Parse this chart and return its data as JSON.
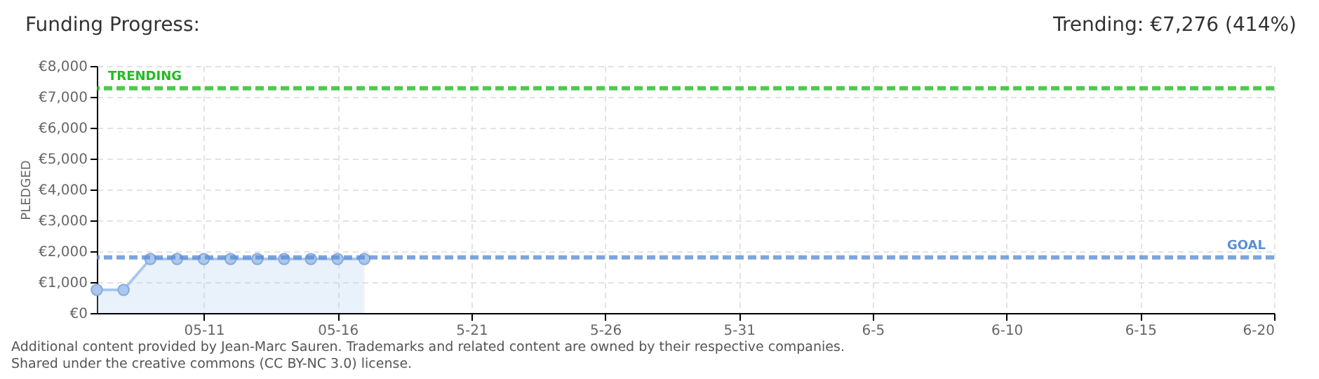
{
  "chart_data": {
    "type": "area",
    "title": "Funding Progress:",
    "subtitle": "Trending: €7,276 (414%)",
    "ylabel": "PLEDGED",
    "x": [
      "--05-07",
      "--05-08",
      "--05-09",
      "--05-10",
      "--05-11",
      "--05-12",
      "--05-13",
      "--05-14",
      "--05-15",
      "--05-16",
      "--05-17"
    ],
    "series": [
      {
        "color": "#a9c8ee",
        "values": [
          750,
          750,
          1750,
          1750,
          1750,
          1750,
          1750,
          1750,
          1750,
          1750,
          1750
        ]
      }
    ],
    "xlim": [
      "--05-07",
      "--06-20"
    ],
    "xticks": [
      {
        "value": "--05-11",
        "label": "05-11"
      },
      {
        "value": "--05-16",
        "label": "05-16"
      },
      {
        "value": "--05-21",
        "label": "5-21"
      },
      {
        "value": "--05-26",
        "label": "5-26"
      },
      {
        "value": "--05-31",
        "label": "5-31"
      },
      {
        "value": "--06-05",
        "label": "6-5"
      },
      {
        "value": "--06-10",
        "label": "6-10"
      },
      {
        "value": "--06-15",
        "label": "6-15"
      },
      {
        "value": "--06-20",
        "label": "6-20"
      }
    ],
    "ylim": [
      0,
      8000
    ],
    "yticks": [
      {
        "value": 0,
        "label": "€0"
      },
      {
        "value": 1000,
        "label": "€1,000"
      },
      {
        "value": 2000,
        "label": "€2,000"
      },
      {
        "value": 3000,
        "label": "€3,000"
      },
      {
        "value": 4000,
        "label": "€4,000"
      },
      {
        "value": 5000,
        "label": "€5,000"
      },
      {
        "value": 6000,
        "label": "€6,000"
      },
      {
        "value": 7000,
        "label": "€7,000"
      },
      {
        "value": 8000,
        "label": "€8,000"
      }
    ],
    "ref_lines": [
      {
        "axis": "y",
        "value": 7276,
        "label": "TRENDING",
        "color": "#22bb22",
        "line_style": "dashed"
      },
      {
        "axis": "y",
        "value": 1800,
        "label": "GOAL",
        "color": "#5b8fd6",
        "line_style": "dashed"
      }
    ],
    "grid": true,
    "marker": "circle",
    "annotations": [
      "Additional content provided by Jean-Marc Sauren. Trademarks and related content are owned by their respective companies.",
      "Shared under the creative commons (CC BY-NC 3.0) license."
    ]
  }
}
